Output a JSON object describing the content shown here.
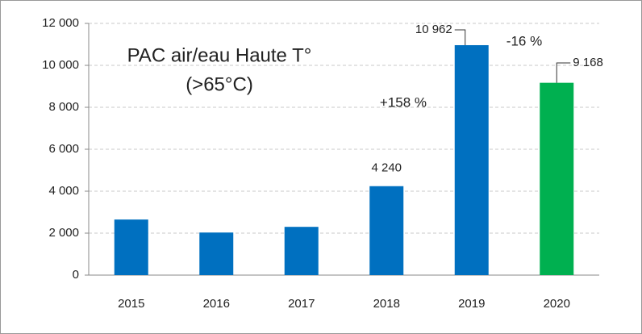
{
  "chart_data": {
    "type": "bar",
    "title": "PAC air/eau Haute T°",
    "subtitle": "(>65°C)",
    "categories": [
      "2015",
      "2016",
      "2017",
      "2018",
      "2019",
      "2020"
    ],
    "values": [
      2650,
      2030,
      2300,
      4240,
      10962,
      9168
    ],
    "value_labels": [
      null,
      null,
      null,
      "4 240",
      "10 962",
      "9 168"
    ],
    "colors": [
      "#0070c0",
      "#0070c0",
      "#0070c0",
      "#0070c0",
      "#0070c0",
      "#00b050"
    ],
    "annotations": [
      "+158 %",
      "-16 %"
    ],
    "ylim": [
      0,
      12000
    ],
    "yticks": [
      0,
      {
        "value": 2000,
        "label": "2 000"
      },
      {
        "value": 4000,
        "label": "4 000"
      },
      {
        "value": 6000,
        "label": "6 000"
      },
      {
        "value": 8000,
        "label": "8 000"
      },
      {
        "value": 10000,
        "label": "10 000"
      },
      {
        "value": 12000,
        "label": "12 000"
      }
    ],
    "grid": true
  }
}
